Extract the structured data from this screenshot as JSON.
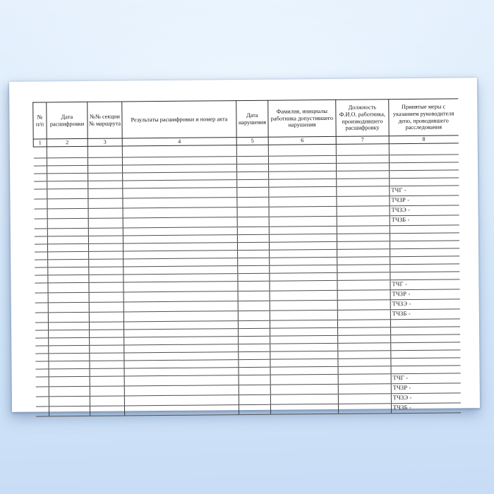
{
  "table": {
    "columns": [
      {
        "label": "№\nп/п",
        "num": "1"
      },
      {
        "label": "Дата\nрасшифровки",
        "num": "2"
      },
      {
        "label": "№№ секции\n№ маршрута",
        "num": "3"
      },
      {
        "label": "Результаты расшифровки и номер акта",
        "num": "4"
      },
      {
        "label": "Дата\nнарушения",
        "num": "5"
      },
      {
        "label": "Фамилия, инициалы\nработника допустившего\nнарушения",
        "num": "6"
      },
      {
        "label": "Должность\nФ.И.О. работника,\nпроизводившего\nрасшифровку",
        "num": "7"
      },
      {
        "label": "Принятые меры с\nуказанием руководителя\nдепо, проводившего\nрасследования",
        "num": "8"
      }
    ],
    "rows": [
      "",
      "",
      "",
      "",
      "",
      "ТЧГ -",
      "ТЧЗР -",
      "ТЧЗЭ -",
      "ТЧЗБ -",
      "",
      "",
      "",
      "",
      "",
      "",
      "",
      "ТЧГ -",
      "ТЧЗР -",
      "ТЧЗЭ -",
      "ТЧЗБ -",
      "",
      "",
      "",
      "",
      "",
      "",
      "",
      "ТЧГ -",
      "ТЧЗР -",
      "ТЧЗЭ -",
      "ТЧЗБ -"
    ]
  }
}
